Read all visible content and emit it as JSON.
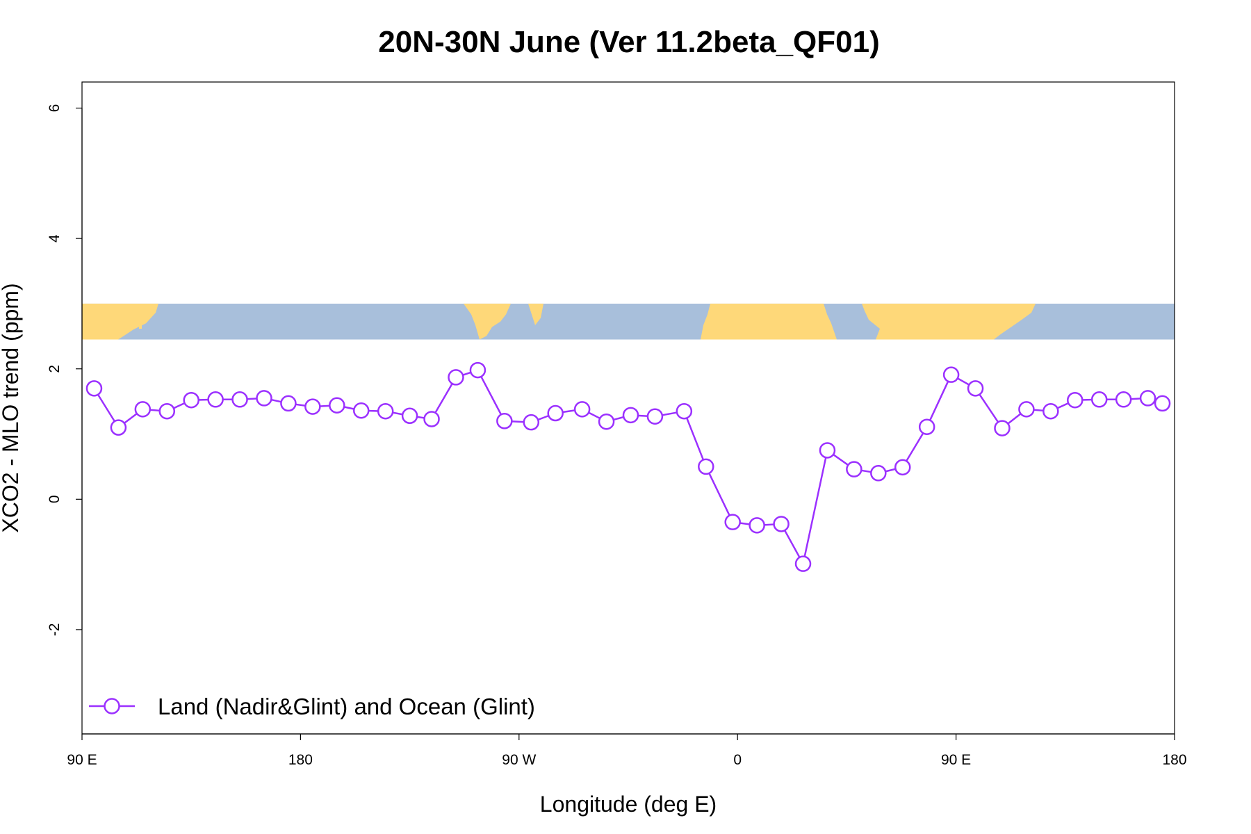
{
  "chart_data": {
    "type": "line",
    "title": "20N-30N June (Ver 11.2beta_QF01)",
    "xlabel": "Longitude (deg E)",
    "ylabel": "XCO2 - MLO trend (ppm)",
    "xlim": [
      90,
      540
    ],
    "ylim": [
      -3.6,
      6.4
    ],
    "x_ticks": [
      {
        "value": 90,
        "label": "90 E"
      },
      {
        "value": 180,
        "label": "180"
      },
      {
        "value": 270,
        "label": "90 W"
      },
      {
        "value": 360,
        "label": "0"
      },
      {
        "value": 450,
        "label": "90 E"
      },
      {
        "value": 540,
        "label": "180"
      }
    ],
    "y_ticks": [
      {
        "value": -2,
        "label": "-2"
      },
      {
        "value": 0,
        "label": "0"
      },
      {
        "value": 2,
        "label": "2"
      },
      {
        "value": 4,
        "label": "4"
      },
      {
        "value": 6,
        "label": "6"
      }
    ],
    "grid": false,
    "legend_position": "bottom-left",
    "map_strip": {
      "y_range": [
        2.45,
        3.0
      ],
      "land_color": "#fed879",
      "ocean_color": "#a8bfdb"
    },
    "series": [
      {
        "name": "Land (Nadir&Glint) and Ocean (Glint)",
        "color": "#9b30ff",
        "marker": "open-circle",
        "x": [
          95,
          105,
          115,
          125,
          135,
          145,
          155,
          165,
          175,
          185,
          195,
          205,
          215,
          225,
          234,
          244,
          253,
          264,
          275,
          285,
          296,
          306,
          316,
          326,
          338,
          347,
          358,
          368,
          378,
          387,
          397,
          408,
          418,
          428,
          438,
          448,
          458,
          469,
          479,
          489,
          499,
          509,
          519,
          529,
          535
        ],
        "values": [
          1.7,
          1.1,
          1.38,
          1.35,
          1.52,
          1.53,
          1.53,
          1.55,
          1.47,
          1.42,
          1.44,
          1.36,
          1.35,
          1.28,
          1.23,
          1.87,
          1.98,
          1.2,
          1.18,
          1.32,
          1.38,
          1.19,
          1.29,
          1.27,
          1.35,
          0.5,
          -0.35,
          -0.4,
          -0.38,
          -0.99,
          0.75,
          0.46,
          0.4,
          0.49,
          1.11,
          1.91,
          1.7,
          1.09,
          1.38,
          1.35,
          1.52,
          1.53,
          1.53,
          1.55,
          1.47
        ]
      }
    ]
  }
}
